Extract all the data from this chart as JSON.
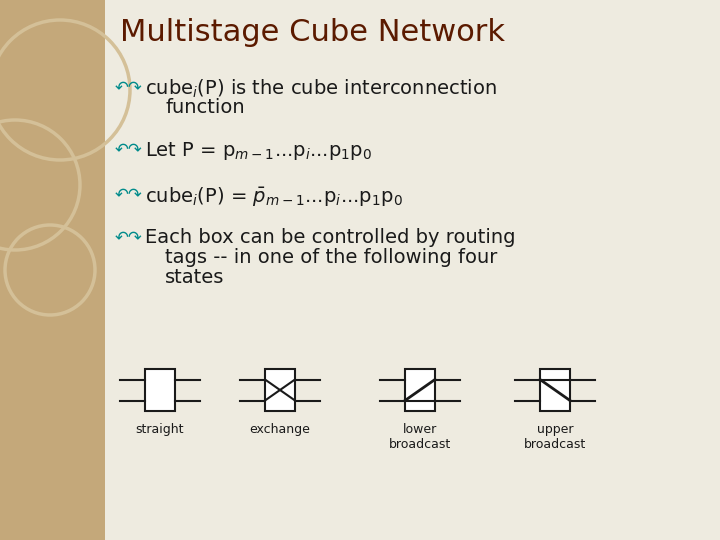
{
  "title": "Multistage Cube Network",
  "title_color": "#5B1A00",
  "title_fontsize": 22,
  "bg_color": "#D4C4A0",
  "left_panel_color": "#C4A87A",
  "main_bg_color": "#EEEBE0",
  "text_color": "#1A1A1A",
  "bullet_color": "#008B8B",
  "body_fontsize": 14,
  "diagram_labels": [
    "straight",
    "exchange",
    "lower\nbroadcast",
    "upper\nbroadcast"
  ],
  "diagram_line_color": "#1A1A1A",
  "circle1_color": "#C8B48A",
  "circle2_color": "#C8B48A"
}
